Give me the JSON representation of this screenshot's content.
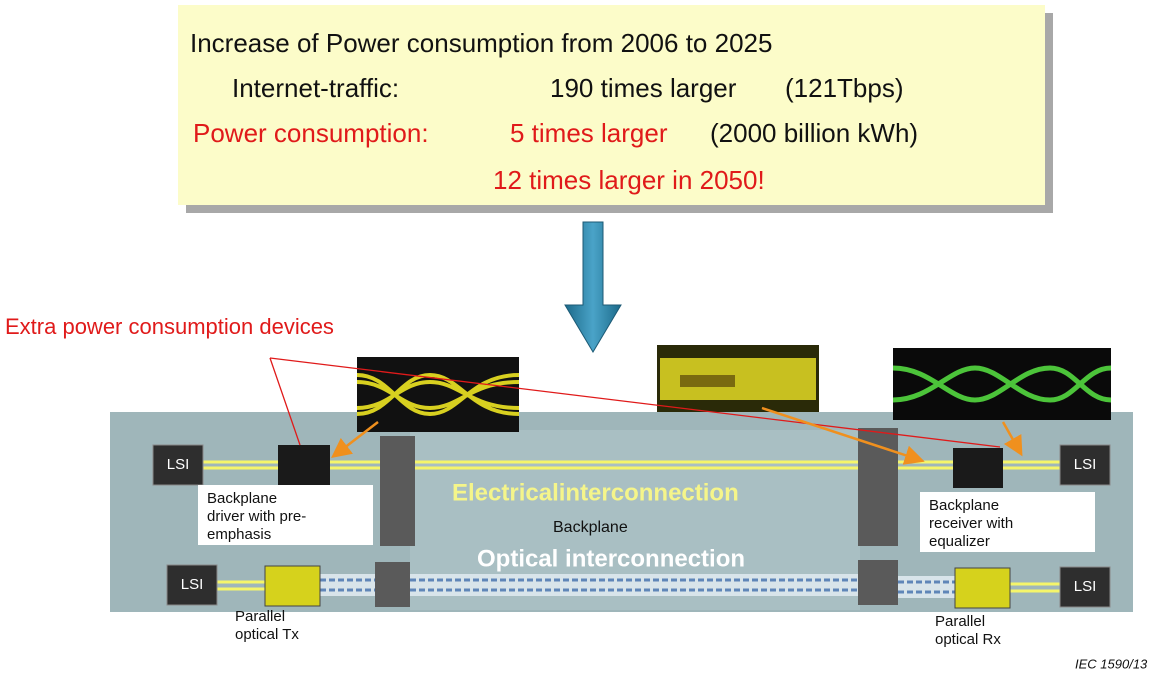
{
  "info_box": {
    "title": "Increase of Power consumption from 2006 to 2025",
    "traffic_label": "Internet-traffic:",
    "traffic_value": "190 times larger",
    "traffic_detail": "(121Tbps)",
    "power_label": "Power consumption:",
    "power_value": "5 times larger",
    "power_detail": "(2000 billion kWh)",
    "forecast": "12 times larger in 2050!"
  },
  "callout": "Extra power consumption devices",
  "lsi": [
    "LSI",
    "LSI",
    "LSI",
    "LSI"
  ],
  "driver_label": [
    "Backplane",
    "driver with pre-",
    "emphasis"
  ],
  "receiver_label": [
    "Backplane",
    "receiver with",
    "equalizer"
  ],
  "tx_label": [
    "Parallel",
    "optical Tx"
  ],
  "rx_label": [
    "Parallel",
    "optical Rx"
  ],
  "electrical": "Electricalinterconnection",
  "backplane": "Backplane",
  "optical": "Optical interconnection",
  "figure_id": "IEC  1590/13"
}
